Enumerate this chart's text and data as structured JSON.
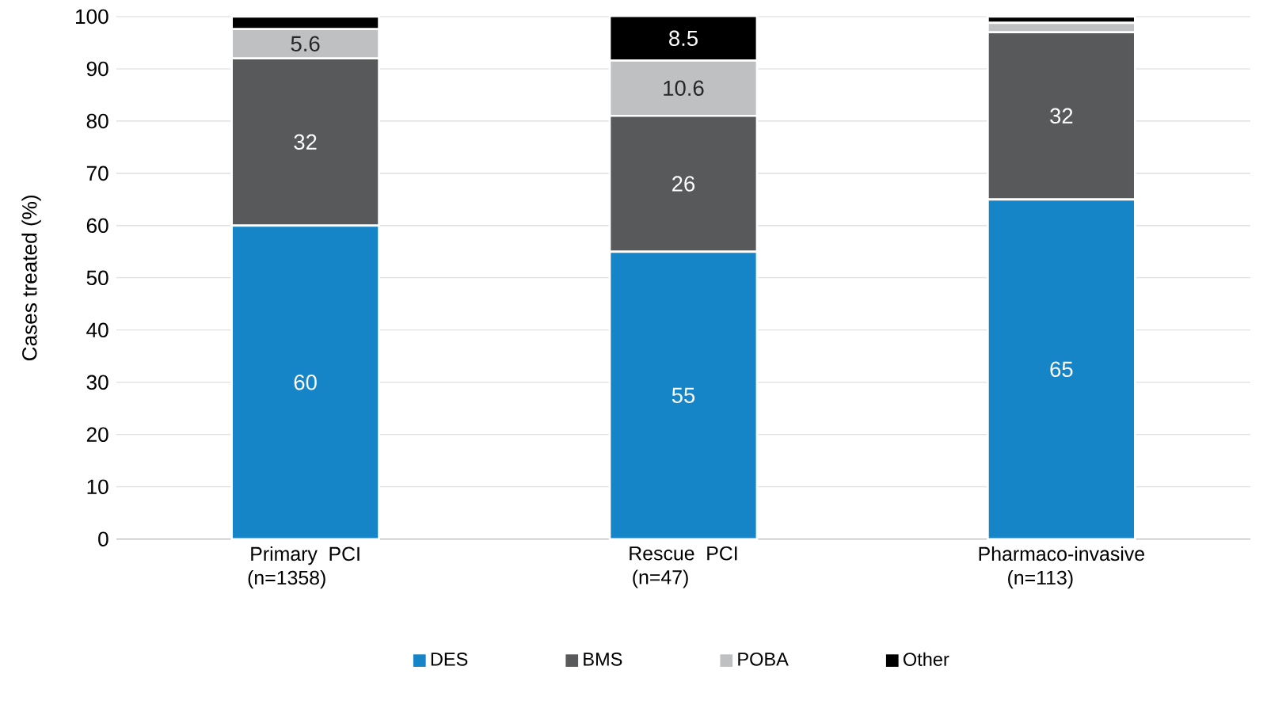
{
  "chart_data": {
    "type": "bar",
    "stacked": true,
    "ylabel": "Cases treated (%)",
    "categories": [
      "Primary PCI (n=1358)",
      "Rescue PCI (n=47)",
      "Pharmaco-invasive (n=113)"
    ],
    "series": [
      {
        "name": "DES",
        "color": "#1585c8",
        "values": [
          60,
          55,
          65
        ],
        "value_labels": [
          "60",
          "55",
          "65"
        ]
      },
      {
        "name": "BMS",
        "color": "#58595b",
        "values": [
          32,
          26,
          32
        ],
        "value_labels": [
          "32",
          "26",
          "32"
        ]
      },
      {
        "name": "POBA",
        "color": "#bfc0c2",
        "values": [
          5.6,
          10.6,
          1.8
        ],
        "value_labels": [
          "5.6",
          "10.6",
          null
        ]
      },
      {
        "name": "Other",
        "color": "#000000",
        "values": [
          2.4,
          8.5,
          1.2
        ],
        "value_labels": [
          null,
          "8.5",
          null
        ]
      }
    ],
    "ylim": [
      0,
      100
    ],
    "yticks": [
      0,
      10,
      20,
      30,
      40,
      50,
      60,
      70,
      80,
      90,
      100
    ],
    "grid": "y",
    "legend": "bottom"
  }
}
